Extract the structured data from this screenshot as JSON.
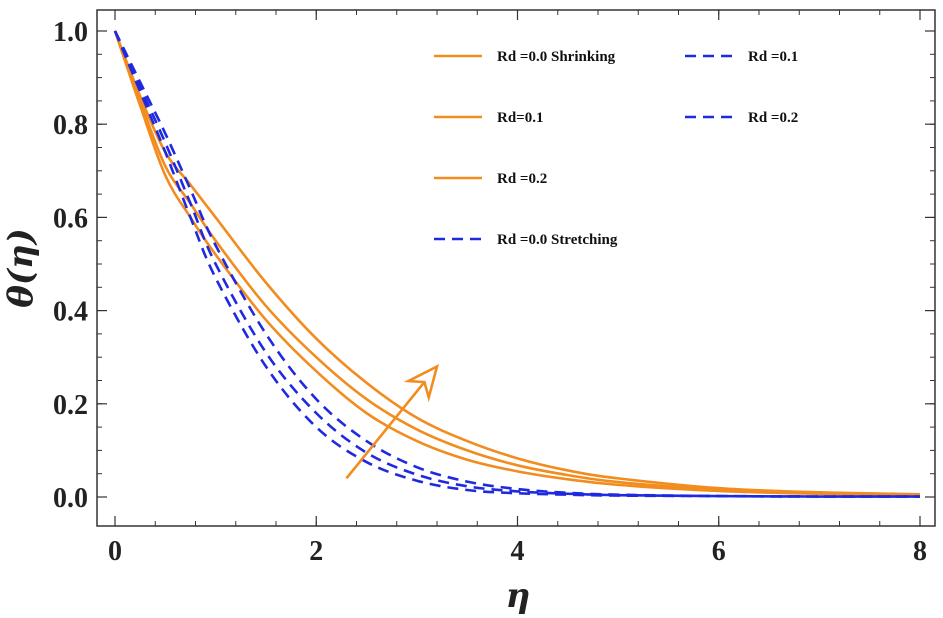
{
  "chart_data": {
    "type": "line",
    "xlabel": "η",
    "ylabel": "θ(η)",
    "xlim": [
      0,
      8
    ],
    "ylim": [
      0,
      1.05
    ],
    "x_ticks": [
      "0",
      "2",
      "4",
      "6",
      "8"
    ],
    "y_ticks": [
      "0.0",
      "0.2",
      "0.4",
      "0.6",
      "0.8",
      "1.0"
    ],
    "grid": false,
    "legend_position": "top-right",
    "x": [
      0,
      0.25,
      0.5,
      0.75,
      1,
      1.5,
      2,
      2.5,
      3,
      3.5,
      4,
      4.5,
      5,
      6,
      7,
      8
    ],
    "series": [
      {
        "name": "Rd =0.0 Shrinking",
        "color": "#f28c1e",
        "dash": "solid",
        "values": [
          1.0,
          0.84,
          0.69,
          0.6,
          0.52,
          0.38,
          0.27,
          0.18,
          0.12,
          0.08,
          0.055,
          0.038,
          0.026,
          0.013,
          0.007,
          0.004
        ]
      },
      {
        "name": "Rd=0.1",
        "color": "#f28c1e",
        "dash": "solid",
        "values": [
          1.0,
          0.85,
          0.71,
          0.63,
          0.55,
          0.41,
          0.3,
          0.21,
          0.145,
          0.1,
          0.068,
          0.047,
          0.032,
          0.016,
          0.008,
          0.005
        ]
      },
      {
        "name": "Rd =0.2",
        "color": "#f28c1e",
        "dash": "solid",
        "values": [
          1.0,
          0.86,
          0.74,
          0.67,
          0.6,
          0.46,
          0.34,
          0.245,
          0.17,
          0.12,
          0.083,
          0.057,
          0.04,
          0.019,
          0.01,
          0.006
        ]
      },
      {
        "name": "Rd =0.0 Stretching",
        "color": "#1f2ae0",
        "dash": "dashed",
        "values": [
          1.0,
          0.87,
          0.74,
          0.6,
          0.47,
          0.28,
          0.15,
          0.075,
          0.035,
          0.015,
          0.008,
          0.005,
          0.003,
          0.002,
          0.001,
          0.001
        ]
      },
      {
        "name": "Rd =0.1",
        "color": "#1f2ae0",
        "dash": "dashed",
        "values": [
          1.0,
          0.88,
          0.76,
          0.63,
          0.5,
          0.31,
          0.18,
          0.095,
          0.048,
          0.023,
          0.012,
          0.007,
          0.004,
          0.002,
          0.001,
          0.001
        ]
      },
      {
        "name": "Rd =0.2",
        "color": "#1f2ae0",
        "dash": "dashed",
        "values": [
          1.0,
          0.89,
          0.78,
          0.66,
          0.54,
          0.35,
          0.21,
          0.12,
          0.064,
          0.033,
          0.017,
          0.009,
          0.005,
          0.002,
          0.001,
          0.001
        ]
      }
    ],
    "annotation": {
      "type": "arrow",
      "color": "#f28c1e",
      "from": [
        2.3,
        0.04
      ],
      "to": [
        3.2,
        0.28
      ]
    }
  }
}
